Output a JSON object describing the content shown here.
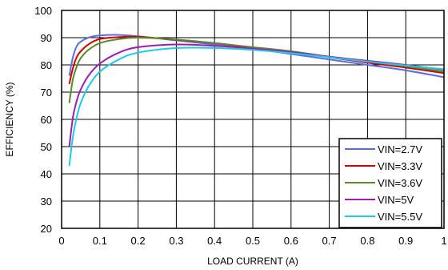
{
  "chart_data": {
    "type": "line",
    "title": "",
    "xlabel": "LOAD CURRENT (A)",
    "ylabel": "EFFICIENCY (%)",
    "xlim": [
      0,
      1
    ],
    "ylim": [
      20,
      100
    ],
    "xticks": [
      "0",
      "0.1",
      "0.2",
      "0.3",
      "0.4",
      "0.5",
      "0.6",
      "0.7",
      "0.8",
      "0.9",
      "1"
    ],
    "yticks": [
      "20",
      "30",
      "40",
      "50",
      "60",
      "70",
      "80",
      "90",
      "100"
    ],
    "grid": true,
    "legend_position": "bottom-right",
    "series": [
      {
        "name": "VIN=2.7V",
        "color": "#5b6ee1",
        "x": [
          0.02,
          0.03,
          0.04,
          0.05,
          0.07,
          0.1,
          0.15,
          0.2,
          0.3,
          0.4,
          0.5,
          0.6,
          0.7,
          0.8,
          0.9,
          1.0
        ],
        "y": [
          76,
          83,
          87,
          88.5,
          90,
          90.8,
          91,
          90.5,
          89,
          87.5,
          86,
          84,
          82,
          80,
          78,
          75.5
        ]
      },
      {
        "name": "VIN=3.3V",
        "color": "#d40000",
        "x": [
          0.02,
          0.03,
          0.04,
          0.05,
          0.07,
          0.1,
          0.15,
          0.2,
          0.3,
          0.4,
          0.5,
          0.6,
          0.7,
          0.8,
          0.9,
          1.0
        ],
        "y": [
          73,
          79,
          83,
          85,
          87.5,
          89.5,
          90.2,
          90.3,
          89.2,
          88,
          86.3,
          84.8,
          82.8,
          80.8,
          79,
          77
        ]
      },
      {
        "name": "VIN=3.6V",
        "color": "#5a8a2a",
        "x": [
          0.02,
          0.03,
          0.04,
          0.05,
          0.07,
          0.1,
          0.15,
          0.2,
          0.3,
          0.4,
          0.5,
          0.6,
          0.7,
          0.8,
          0.9,
          1.0
        ],
        "y": [
          66,
          75,
          79.5,
          82.5,
          85.5,
          88,
          89.5,
          90,
          89.3,
          88,
          86.5,
          85,
          83,
          81.3,
          79.5,
          77.5
        ]
      },
      {
        "name": "VIN=5V",
        "color": "#9a1fb0",
        "x": [
          0.02,
          0.03,
          0.04,
          0.05,
          0.07,
          0.1,
          0.15,
          0.2,
          0.3,
          0.4,
          0.5,
          0.6,
          0.7,
          0.8,
          0.9,
          1.0
        ],
        "y": [
          50,
          61,
          67,
          71,
          76,
          80.5,
          84.5,
          86.5,
          87.5,
          87,
          86,
          84.7,
          83,
          81.5,
          80,
          78.2
        ]
      },
      {
        "name": "VIN=5.5V",
        "color": "#1ec8e8",
        "x": [
          0.02,
          0.03,
          0.04,
          0.05,
          0.07,
          0.1,
          0.15,
          0.2,
          0.3,
          0.4,
          0.5,
          0.6,
          0.7,
          0.8,
          0.9,
          1.0
        ],
        "y": [
          43,
          54,
          61,
          66,
          72,
          77.5,
          82,
          84.5,
          86.2,
          86.2,
          85.5,
          84.3,
          82.8,
          81.2,
          79.8,
          78.4
        ]
      }
    ]
  }
}
